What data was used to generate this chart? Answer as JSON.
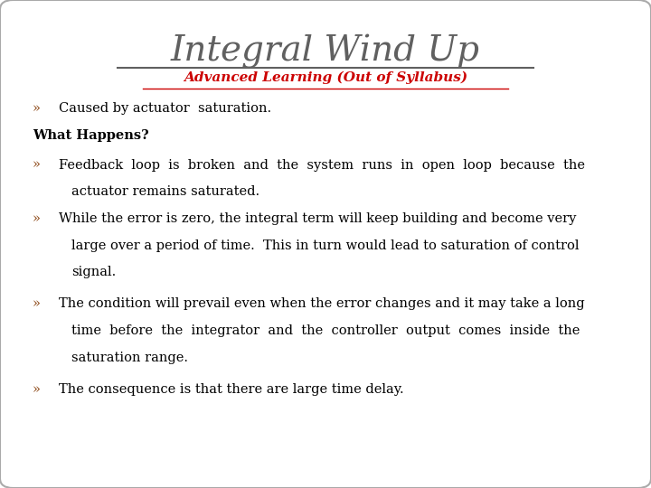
{
  "title": "Integral Wind Up",
  "subtitle": "Advanced Learning (Out of Syllabus)",
  "title_color": "#606060",
  "subtitle_color": "#cc0000",
  "background_color": "#ffffff",
  "border_color": "#aaaaaa",
  "bullet_color": "#8B4513",
  "body_color": "#000000",
  "what_happens_color": "#000000",
  "bullet_symbol": "»",
  "bullet1": "Caused by actuator  saturation.",
  "what_happens": "What Happens?",
  "bullet2_line1": "Feedback  loop  is  broken  and  the  system  runs  in  open  loop  because  the",
  "bullet2_line2": "actuator remains saturated.",
  "bullet3_line1": "While the error is zero, the integral term will keep building and become very",
  "bullet3_line2": "large over a period of time.  This in turn would lead to saturation of control",
  "bullet3_line3": "signal.",
  "bullet4_line1": "The condition will prevail even when the error changes and it may take a long",
  "bullet4_line2": "time  before  the  integrator  and  the  controller  output  comes  inside  the",
  "bullet4_line3": "saturation range.",
  "bullet5": "The consequence is that there are large time delay."
}
